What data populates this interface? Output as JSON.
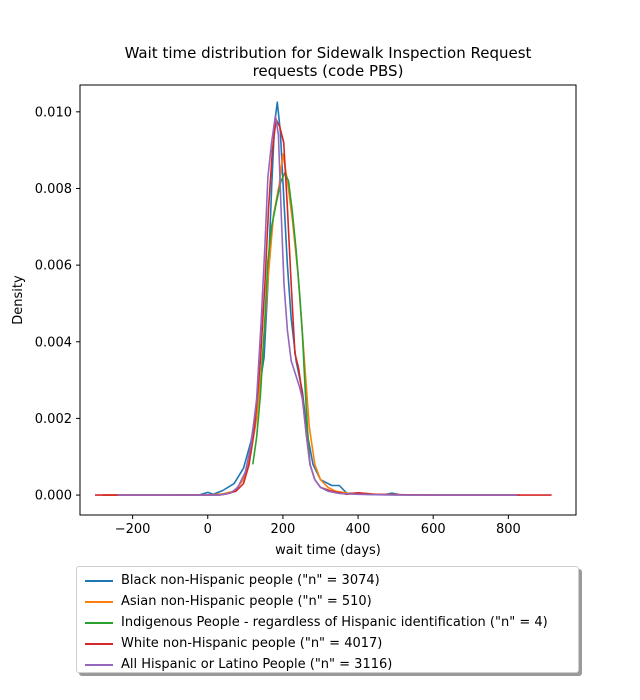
{
  "chart_data": {
    "type": "line",
    "title": "Wait time distribution  for Sidewalk Inspection Request",
    "subtitle": "requests (code PBS)",
    "xlabel": "wait time (days)",
    "ylabel": "Density",
    "xlim": [
      -340,
      980
    ],
    "ylim": [
      -0.00052,
      0.0107
    ],
    "x_ticks": [
      -200,
      0,
      200,
      400,
      600,
      800
    ],
    "x_tick_labels": [
      "−200",
      "0",
      "200",
      "400",
      "600",
      "800"
    ],
    "y_ticks": [
      0,
      0.002,
      0.004,
      0.006,
      0.008,
      0.01
    ],
    "y_tick_labels": [
      "0.000",
      "0.002",
      "0.004",
      "0.006",
      "0.008",
      "0.010"
    ],
    "grid": false,
    "legend_position": "below",
    "series": [
      {
        "name": "Black non-Hispanic people (\"n\" = 3074)",
        "color": "#1f77b4",
        "points": [
          [
            -280,
            0
          ],
          [
            -100,
            0
          ],
          [
            -20,
            1e-05
          ],
          [
            0,
            7e-05
          ],
          [
            15,
            2e-05
          ],
          [
            40,
            0.00012
          ],
          [
            70,
            0.0003
          ],
          [
            95,
            0.0007
          ],
          [
            115,
            0.0014
          ],
          [
            130,
            0.0023
          ],
          [
            150,
            0.0036
          ],
          [
            160,
            0.0055
          ],
          [
            170,
            0.008
          ],
          [
            178,
            0.0097
          ],
          [
            185,
            0.01025
          ],
          [
            193,
            0.0095
          ],
          [
            202,
            0.0078
          ],
          [
            212,
            0.006
          ],
          [
            222,
            0.0046
          ],
          [
            235,
            0.0035
          ],
          [
            252,
            0.0027
          ],
          [
            265,
            0.0016
          ],
          [
            280,
            0.0008
          ],
          [
            300,
            0.0004
          ],
          [
            330,
            0.00025
          ],
          [
            350,
            0.00025
          ],
          [
            370,
            5e-05
          ],
          [
            400,
            5e-05
          ],
          [
            420,
            2e-05
          ],
          [
            470,
            1e-05
          ],
          [
            490,
            5e-05
          ],
          [
            510,
            1e-05
          ],
          [
            600,
            0
          ],
          [
            800,
            0
          ],
          [
            830,
            0
          ]
        ]
      },
      {
        "name": "Asian non-Hispanic people (\"n\" = 510)",
        "color": "#ff7f0e",
        "points": [
          [
            -280,
            0
          ],
          [
            -100,
            0
          ],
          [
            0,
            0
          ],
          [
            40,
            3e-05
          ],
          [
            70,
            0.0001
          ],
          [
            95,
            0.0004
          ],
          [
            115,
            0.0011
          ],
          [
            130,
            0.002
          ],
          [
            145,
            0.0035
          ],
          [
            160,
            0.0056
          ],
          [
            175,
            0.0073
          ],
          [
            190,
            0.0081
          ],
          [
            200,
            0.0089
          ],
          [
            212,
            0.0082
          ],
          [
            225,
            0.0072
          ],
          [
            240,
            0.0058
          ],
          [
            255,
            0.0038
          ],
          [
            270,
            0.0018
          ],
          [
            285,
            0.0008
          ],
          [
            300,
            0.0004
          ],
          [
            320,
            0.0002
          ],
          [
            340,
            0.0001
          ],
          [
            380,
            4e-05
          ],
          [
            400,
            6e-05
          ],
          [
            450,
            2e-05
          ],
          [
            500,
            1e-05
          ],
          [
            600,
            0
          ],
          [
            800,
            0
          ],
          [
            830,
            0
          ]
        ]
      },
      {
        "name": "Indigenous People - regardless of Hispanic identification (\"n\" = 4)",
        "color": "#2ca02c",
        "points": [
          [
            120,
            0.0008
          ],
          [
            130,
            0.0015
          ],
          [
            140,
            0.0026
          ],
          [
            150,
            0.0042
          ],
          [
            160,
            0.0061
          ],
          [
            170,
            0.007
          ],
          [
            182,
            0.0076
          ],
          [
            195,
            0.0082
          ],
          [
            205,
            0.0084
          ],
          [
            215,
            0.0082
          ],
          [
            225,
            0.0074
          ],
          [
            235,
            0.0064
          ],
          [
            245,
            0.0052
          ],
          [
            252,
            0.0042
          ],
          [
            258,
            0.003
          ],
          [
            265,
            0.0018
          ],
          [
            272,
            0.0008
          ]
        ]
      },
      {
        "name": "White non-Hispanic people (\"n\" = 4017)",
        "color": "#d62728",
        "points": [
          [
            -300,
            0
          ],
          [
            -100,
            0
          ],
          [
            0,
            0
          ],
          [
            30,
            0
          ],
          [
            50,
            3e-05
          ],
          [
            75,
            0.0001
          ],
          [
            95,
            0.0003
          ],
          [
            110,
            0.0008
          ],
          [
            125,
            0.0018
          ],
          [
            140,
            0.0035
          ],
          [
            152,
            0.0055
          ],
          [
            162,
            0.0075
          ],
          [
            172,
            0.009
          ],
          [
            182,
            0.0098
          ],
          [
            192,
            0.0096
          ],
          [
            202,
            0.0092
          ],
          [
            212,
            0.0075
          ],
          [
            222,
            0.0055
          ],
          [
            232,
            0.0037
          ],
          [
            242,
            0.0033
          ],
          [
            252,
            0.0026
          ],
          [
            262,
            0.0016
          ],
          [
            272,
            0.0008
          ],
          [
            285,
            0.0004
          ],
          [
            300,
            0.0002
          ],
          [
            330,
            0.0001
          ],
          [
            370,
            2e-05
          ],
          [
            400,
            6e-05
          ],
          [
            440,
            2e-05
          ],
          [
            500,
            1e-05
          ],
          [
            600,
            0
          ],
          [
            800,
            0
          ],
          [
            915,
            0
          ]
        ]
      },
      {
        "name": "All Hispanic or Latino People (\"n\" = 3116)",
        "color": "#9467bd",
        "points": [
          [
            -240,
            0
          ],
          [
            -100,
            0
          ],
          [
            0,
            0
          ],
          [
            30,
            0
          ],
          [
            60,
            5e-05
          ],
          [
            80,
            0.0002
          ],
          [
            100,
            0.0006
          ],
          [
            115,
            0.0013
          ],
          [
            130,
            0.0025
          ],
          [
            142,
            0.0045
          ],
          [
            152,
            0.0065
          ],
          [
            160,
            0.0083
          ],
          [
            170,
            0.0092
          ],
          [
            180,
            0.0099
          ],
          [
            188,
            0.0094
          ],
          [
            195,
            0.0075
          ],
          [
            203,
            0.0055
          ],
          [
            212,
            0.0043
          ],
          [
            222,
            0.0035
          ],
          [
            232,
            0.0032
          ],
          [
            245,
            0.0028
          ],
          [
            252,
            0.0025
          ],
          [
            262,
            0.0016
          ],
          [
            272,
            0.0008
          ],
          [
            285,
            0.0004
          ],
          [
            300,
            0.0002
          ],
          [
            320,
            0.0001
          ],
          [
            350,
            4e-05
          ],
          [
            400,
            2e-05
          ],
          [
            500,
            0
          ],
          [
            600,
            0
          ],
          [
            800,
            0
          ],
          [
            825,
            0
          ]
        ]
      }
    ]
  }
}
